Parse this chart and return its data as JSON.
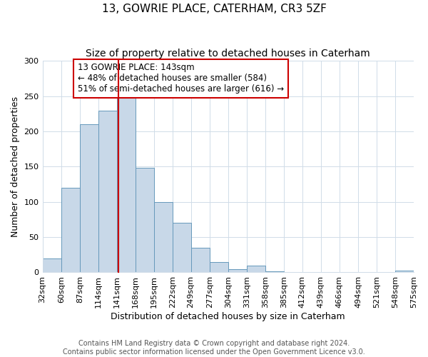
{
  "title": "13, GOWRIE PLACE, CATERHAM, CR3 5ZF",
  "subtitle": "Size of property relative to detached houses in Caterham",
  "xlabel": "Distribution of detached houses by size in Caterham",
  "ylabel": "Number of detached properties",
  "bin_labels": [
    "32sqm",
    "60sqm",
    "87sqm",
    "114sqm",
    "141sqm",
    "168sqm",
    "195sqm",
    "222sqm",
    "249sqm",
    "277sqm",
    "304sqm",
    "331sqm",
    "358sqm",
    "385sqm",
    "412sqm",
    "439sqm",
    "466sqm",
    "494sqm",
    "521sqm",
    "548sqm",
    "575sqm"
  ],
  "bin_edges": [
    32,
    60,
    87,
    114,
    141,
    168,
    195,
    222,
    249,
    277,
    304,
    331,
    358,
    385,
    412,
    439,
    466,
    494,
    521,
    548,
    575
  ],
  "bar_heights": [
    20,
    120,
    210,
    230,
    250,
    148,
    100,
    70,
    35,
    15,
    5,
    10,
    1,
    0,
    0,
    0,
    0,
    0,
    0,
    2
  ],
  "bar_color": "#c8d8e8",
  "bar_edge_color": "#6699bb",
  "property_line_x": 143,
  "property_line_color": "#cc0000",
  "annotation_line1": "13 GOWRIE PLACE: 143sqm",
  "annotation_line2": "← 48% of detached houses are smaller (584)",
  "annotation_line3": "51% of semi-detached houses are larger (616) →",
  "annotation_box_color": "#cc0000",
  "ylim": [
    0,
    300
  ],
  "yticks": [
    0,
    50,
    100,
    150,
    200,
    250,
    300
  ],
  "grid_color": "#d0dce8",
  "footer_line1": "Contains HM Land Registry data © Crown copyright and database right 2024.",
  "footer_line2": "Contains public sector information licensed under the Open Government Licence v3.0.",
  "title_fontsize": 11,
  "subtitle_fontsize": 10,
  "axis_label_fontsize": 9,
  "tick_fontsize": 8,
  "annotation_fontsize": 8.5,
  "footer_fontsize": 7
}
